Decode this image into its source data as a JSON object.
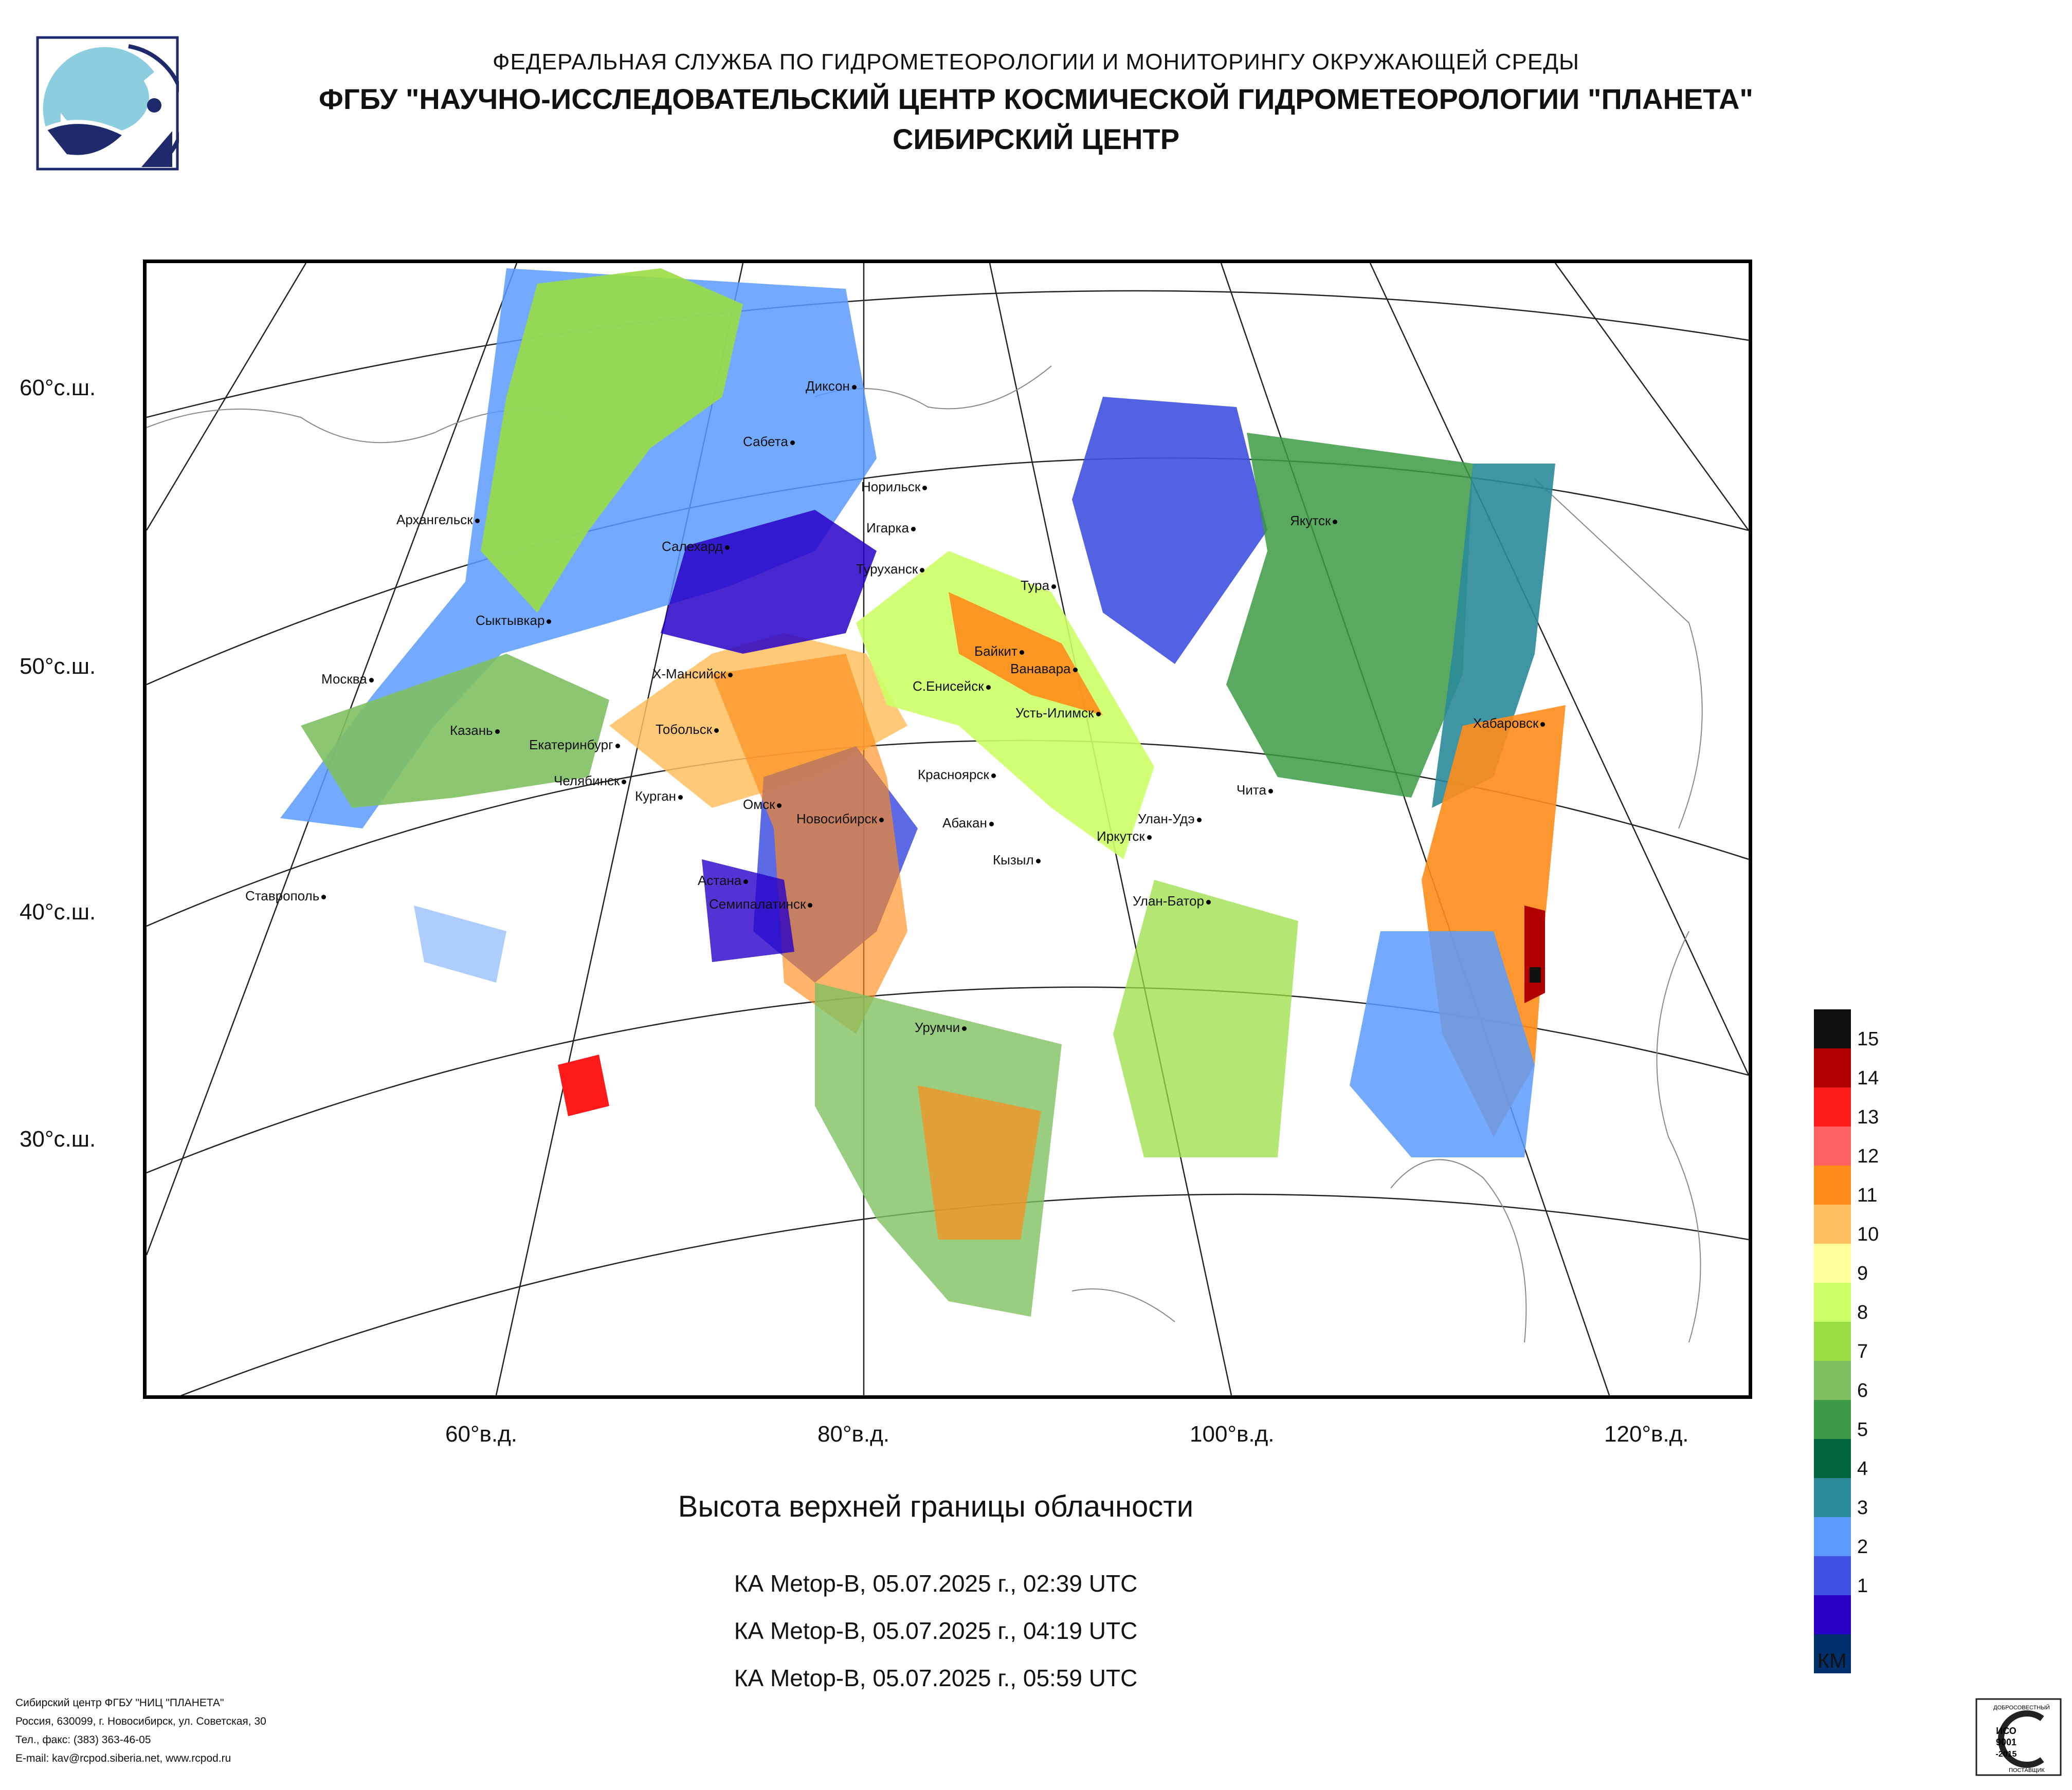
{
  "header": {
    "line1": "ФЕДЕРАЛЬНАЯ СЛУЖБА ПО ГИДРОМЕТЕОРОЛОГИИ И МОНИТОРИНГУ ОКРУЖАЮЩЕЙ СРЕДЫ",
    "line2": "ФГБУ \"НАУЧНО-ИССЛЕДОВАТЕЛЬСКИЙ ЦЕНТР КОСМИЧЕСКОЙ ГИДРОМЕТЕОРОЛОГИИ \"ПЛАНЕТА\"",
    "line3": "СИБИРСКИЙ ЦЕНТР"
  },
  "map": {
    "lat_labels": [
      "60°с.ш.",
      "50°с.ш.",
      "40°с.ш.",
      "30°с.ш."
    ],
    "lon_labels": [
      "60°в.д.",
      "80°в.д.",
      "100°в.д.",
      "120°в.д."
    ],
    "cities": [
      {
        "name": "Диксон"
      },
      {
        "name": "Сабета"
      },
      {
        "name": "Норильск"
      },
      {
        "name": "Игарка"
      },
      {
        "name": "Архангельск"
      },
      {
        "name": "Салехард"
      },
      {
        "name": "Туруханск"
      },
      {
        "name": "Тура"
      },
      {
        "name": "Якутск"
      },
      {
        "name": "Сыктывкар"
      },
      {
        "name": "Байкит"
      },
      {
        "name": "Ванавара"
      },
      {
        "name": "Москва"
      },
      {
        "name": "Х-Мансийск"
      },
      {
        "name": "С.Енисейск"
      },
      {
        "name": "Усть-Илимск"
      },
      {
        "name": "Казань"
      },
      {
        "name": "Екатеринбург"
      },
      {
        "name": "Тобольск"
      },
      {
        "name": "Хабаровск"
      },
      {
        "name": "Челябинск"
      },
      {
        "name": "Курган"
      },
      {
        "name": "Красноярск"
      },
      {
        "name": "Омск"
      },
      {
        "name": "Чита"
      },
      {
        "name": "Новосибирск"
      },
      {
        "name": "Абакан"
      },
      {
        "name": "Улан-Удэ"
      },
      {
        "name": "Иркутск"
      },
      {
        "name": "Кызыл"
      },
      {
        "name": "Астана"
      },
      {
        "name": "Ставрополь"
      },
      {
        "name": "Семипалатинск"
      },
      {
        "name": "Улан-Батор"
      },
      {
        "name": "Урумчи"
      }
    ]
  },
  "title": "Высота верхней границы облачности",
  "passes": [
    "КА Metop-B, 05.07.2025 г., 02:39 UTC",
    "КА Metop-B, 05.07.2025 г., 04:19 UTC",
    "КА Metop-B, 05.07.2025 г., 05:59 UTC"
  ],
  "legend": {
    "unit": "КМ",
    "items": [
      {
        "label": "15",
        "color": "#111111"
      },
      {
        "label": "14",
        "color": "#b00000"
      },
      {
        "label": "13",
        "color": "#ff1a1a"
      },
      {
        "label": "12",
        "color": "#ff6060"
      },
      {
        "label": "11",
        "color": "#ff8c1a"
      },
      {
        "label": "10",
        "color": "#ffc060"
      },
      {
        "label": "9",
        "color": "#ffff99"
      },
      {
        "label": "8",
        "color": "#ccff66"
      },
      {
        "label": "7",
        "color": "#99dd44"
      },
      {
        "label": "6",
        "color": "#80c060"
      },
      {
        "label": "5",
        "color": "#3c9a44"
      },
      {
        "label": "4",
        "color": "#00643c"
      },
      {
        "label": "3",
        "color": "#2a8a9a"
      },
      {
        "label": "2",
        "color": "#5b9bff"
      },
      {
        "label": "1",
        "color": "#4050e0"
      },
      {
        "label": "",
        "color": "#2800c8"
      },
      {
        "label": "",
        "color": "#00306e"
      }
    ]
  },
  "footer": {
    "line1": "Сибирский центр ФГБУ \"НИЦ \"ПЛАНЕТА\"",
    "line2": "Россия, 630099, г. Новосибирск, ул. Советская, 30",
    "line3": "Тел., факс: (383) 363-46-05",
    "line4": "E-mail: kav@rcpod.siberia.net, www.rcpod.ru"
  },
  "iso_badge": {
    "top": "ДОБРОСОВЕСТНЫЙ",
    "line1": "ИСО",
    "line2": "9001",
    "line3": "-2015",
    "bottom": "ПОСТАВЩИК"
  }
}
